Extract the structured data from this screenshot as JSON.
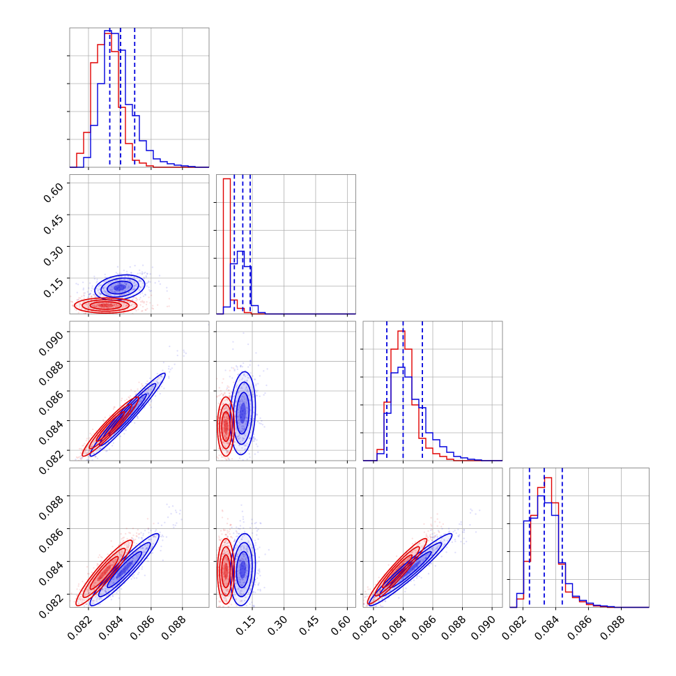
{
  "chart_data": {
    "type": "corner",
    "grid": true,
    "colors": {
      "red": "#e00000",
      "blue": "#0000dd",
      "quantile": "#0000dd"
    },
    "params": [
      {
        "xlim": [
          0.0808,
          0.0897
        ],
        "ticks": [
          0.082,
          0.084,
          0.086,
          0.088
        ],
        "tick_labels": [
          "0.082",
          "0.084",
          "0.086",
          "0.088"
        ],
        "quantiles": [
          0.08336,
          0.08405,
          0.08495
        ],
        "hist_red": [
          0.0,
          0.1,
          0.25,
          0.75,
          0.88,
          0.96,
          0.83,
          0.43,
          0.17,
          0.05,
          0.03,
          0.01,
          0.0,
          0.0,
          0.0,
          0.0,
          0.0,
          0.0,
          0.0,
          0.0
        ],
        "hist_blue": [
          0.0,
          0.0,
          0.07,
          0.3,
          0.6,
          0.98,
          0.96,
          0.84,
          0.45,
          0.37,
          0.19,
          0.12,
          0.06,
          0.04,
          0.025,
          0.015,
          0.01,
          0.005,
          0.0,
          0.0
        ]
      },
      {
        "xlim": [
          -0.02,
          0.64
        ],
        "ticks": [
          0.15,
          0.3,
          0.45,
          0.6
        ],
        "tick_labels": [
          "0.15",
          "0.30",
          "0.45",
          "0.60"
        ],
        "quantiles": [
          0.065,
          0.105,
          0.14
        ],
        "hist_red": [
          0.0,
          0.97,
          0.1,
          0.04,
          0.01,
          0.0,
          0.0,
          0.0,
          0.0,
          0.0,
          0.0,
          0.0,
          0.0,
          0.0,
          0.0,
          0.0,
          0.0,
          0.0,
          0.0,
          0.0
        ],
        "hist_blue": [
          0.0,
          0.05,
          0.36,
          0.45,
          0.34,
          0.06,
          0.01,
          0.0,
          0.0,
          0.0,
          0.0,
          0.0,
          0.0,
          0.0,
          0.0,
          0.0,
          0.0,
          0.0,
          0.0,
          0.0
        ]
      },
      {
        "xlim": [
          0.0813,
          0.0907
        ],
        "ticks": [
          0.082,
          0.084,
          0.086,
          0.088,
          0.09
        ],
        "tick_labels": [
          "0.082",
          "0.084",
          "0.086",
          "0.088",
          "0.090"
        ],
        "quantiles": [
          0.0829,
          0.084,
          0.0853
        ],
        "hist_red": [
          0.0,
          0.0,
          0.08,
          0.42,
          0.8,
          0.93,
          0.8,
          0.4,
          0.16,
          0.09,
          0.05,
          0.03,
          0.01,
          0.0,
          0.0,
          0.0,
          0.0,
          0.0,
          0.0,
          0.0
        ],
        "hist_blue": [
          0.0,
          0.0,
          0.05,
          0.34,
          0.63,
          0.67,
          0.6,
          0.44,
          0.38,
          0.2,
          0.15,
          0.1,
          0.06,
          0.03,
          0.02,
          0.01,
          0.005,
          0.0,
          0.0,
          0.0
        ]
      },
      {
        "xlim": [
          0.0812,
          0.0897
        ],
        "ticks": [
          0.082,
          0.084,
          0.086,
          0.088
        ],
        "tick_labels": [
          "0.082",
          "0.084",
          "0.086",
          "0.088"
        ],
        "quantiles": [
          0.0824,
          0.0833,
          0.0844
        ],
        "hist_red": [
          0.0,
          0.06,
          0.33,
          0.66,
          0.86,
          0.93,
          0.75,
          0.31,
          0.11,
          0.07,
          0.04,
          0.02,
          0.01,
          0.005,
          0.0,
          0.0,
          0.0,
          0.0,
          0.0,
          0.0
        ],
        "hist_blue": [
          0.0,
          0.1,
          0.62,
          0.64,
          0.8,
          0.75,
          0.66,
          0.32,
          0.17,
          0.08,
          0.05,
          0.03,
          0.015,
          0.01,
          0.005,
          0.0,
          0.0,
          0.0,
          0.0,
          0.0
        ]
      }
    ],
    "pairs": [
      {
        "row": 1,
        "col": 0,
        "red": {
          "mean": [
            0.0831,
            0.02
          ],
          "sd": [
            0.001,
            0.018
          ],
          "rho": 0.0
        },
        "blue": {
          "mean": [
            0.084,
            0.105
          ],
          "sd": [
            0.0008,
            0.03
          ],
          "rho": 0.25
        }
      },
      {
        "row": 2,
        "col": 0,
        "red": {
          "mean": [
            0.0834,
            0.0836
          ],
          "sd": [
            0.0009,
            0.001
          ],
          "rho": 0.95
        },
        "blue": {
          "mean": [
            0.0845,
            0.0844
          ],
          "sd": [
            0.0012,
            0.0014
          ],
          "rho": 0.97
        }
      },
      {
        "row": 2,
        "col": 1,
        "red": {
          "mean": [
            0.025,
            0.0836
          ],
          "sd": [
            0.02,
            0.001
          ],
          "rho": 0.0
        },
        "blue": {
          "mean": [
            0.105,
            0.0845
          ],
          "sd": [
            0.03,
            0.0014
          ],
          "rho": 0.15
        }
      },
      {
        "row": 3,
        "col": 0,
        "red": {
          "mean": [
            0.083,
            0.0833
          ],
          "sd": [
            0.0009,
            0.001
          ],
          "rho": 0.93
        },
        "blue": {
          "mean": [
            0.0843,
            0.0835
          ],
          "sd": [
            0.0011,
            0.0011
          ],
          "rho": 0.94
        }
      },
      {
        "row": 3,
        "col": 1,
        "red": {
          "mean": [
            0.025,
            0.0834
          ],
          "sd": [
            0.02,
            0.001
          ],
          "rho": 0.0
        },
        "blue": {
          "mean": [
            0.105,
            0.0835
          ],
          "sd": [
            0.03,
            0.0011
          ],
          "rho": 0.15
        }
      },
      {
        "row": 3,
        "col": 2,
        "red": {
          "mean": [
            0.0836,
            0.0834
          ],
          "sd": [
            0.001,
            0.001
          ],
          "rho": 0.95
        },
        "blue": {
          "mean": [
            0.0845,
            0.0835
          ],
          "sd": [
            0.0014,
            0.0011
          ],
          "rho": 0.96
        }
      }
    ]
  }
}
